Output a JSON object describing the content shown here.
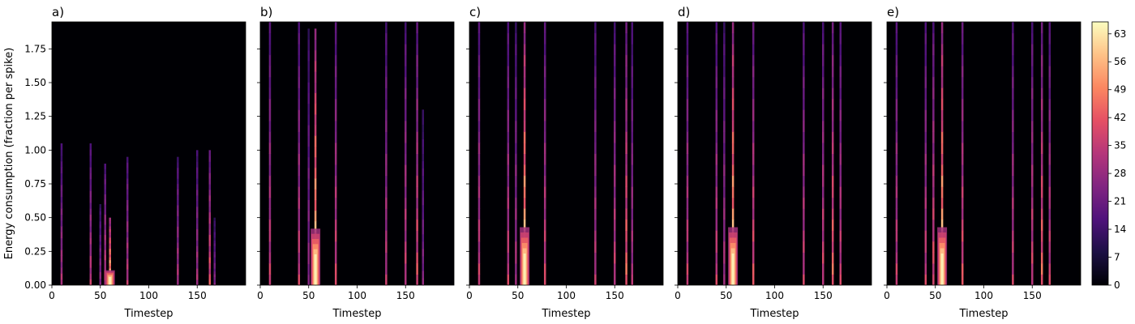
{
  "chart_data": {
    "type": "heatmap",
    "ylabel": "Energy consumption (fraction per spike)",
    "xlabel": "Timestep",
    "xlim": [
      0,
      200
    ],
    "ylim": [
      0,
      1.95
    ],
    "x_ticks": [
      0,
      50,
      100,
      150
    ],
    "x_tick_labels": [
      "0",
      "50",
      "100",
      "150"
    ],
    "y_ticks": [
      0,
      0.25,
      0.5,
      0.75,
      1.0,
      1.25,
      1.5,
      1.75
    ],
    "y_tick_labels": [
      "0.00",
      "0.25",
      "0.50",
      "0.75",
      "1.00",
      "1.25",
      "1.50",
      "1.75"
    ],
    "colormap": "magma",
    "colorbar": {
      "range": [
        0,
        66
      ],
      "ticks": [
        0,
        7,
        14,
        21,
        28,
        35,
        42,
        49,
        56,
        63
      ],
      "tick_labels": [
        "0",
        "7",
        "14",
        "21",
        "28",
        "35",
        "42",
        "49",
        "56",
        "63"
      ]
    },
    "panels": [
      {
        "title": "a)",
        "bands": [
          {
            "x": 10,
            "ymax": 1.05,
            "intensity": 35
          },
          {
            "x": 40,
            "ymax": 1.05,
            "intensity": 38
          },
          {
            "x": 50,
            "ymax": 0.6,
            "intensity": 30
          },
          {
            "x": 55,
            "ymax": 0.9,
            "intensity": 40
          },
          {
            "x": 60,
            "ymax": 0.5,
            "intensity": 66
          },
          {
            "x": 78,
            "ymax": 0.95,
            "intensity": 38
          },
          {
            "x": 130,
            "ymax": 0.95,
            "intensity": 36
          },
          {
            "x": 150,
            "ymax": 1.0,
            "intensity": 35
          },
          {
            "x": 163,
            "ymax": 1.0,
            "intensity": 45
          },
          {
            "x": 168,
            "ymax": 0.5,
            "intensity": 28
          }
        ]
      },
      {
        "title": "b)",
        "bands": [
          {
            "x": 10,
            "ymax": 1.95,
            "intensity": 40
          },
          {
            "x": 40,
            "ymax": 1.95,
            "intensity": 40
          },
          {
            "x": 50,
            "ymax": 1.9,
            "intensity": 30
          },
          {
            "x": 57,
            "ymax": 1.9,
            "intensity": 66
          },
          {
            "x": 78,
            "ymax": 1.95,
            "intensity": 42
          },
          {
            "x": 130,
            "ymax": 1.95,
            "intensity": 38
          },
          {
            "x": 150,
            "ymax": 1.95,
            "intensity": 40
          },
          {
            "x": 162,
            "ymax": 1.95,
            "intensity": 45
          },
          {
            "x": 168,
            "ymax": 1.3,
            "intensity": 28
          }
        ]
      },
      {
        "title": "c)",
        "bands": [
          {
            "x": 10,
            "ymax": 1.95,
            "intensity": 40
          },
          {
            "x": 40,
            "ymax": 1.95,
            "intensity": 40
          },
          {
            "x": 48,
            "ymax": 1.95,
            "intensity": 35
          },
          {
            "x": 57,
            "ymax": 1.95,
            "intensity": 66
          },
          {
            "x": 78,
            "ymax": 1.95,
            "intensity": 42
          },
          {
            "x": 130,
            "ymax": 1.95,
            "intensity": 38
          },
          {
            "x": 150,
            "ymax": 1.95,
            "intensity": 40
          },
          {
            "x": 162,
            "ymax": 1.95,
            "intensity": 50
          },
          {
            "x": 168,
            "ymax": 1.95,
            "intensity": 35
          }
        ]
      },
      {
        "title": "d)",
        "bands": [
          {
            "x": 10,
            "ymax": 1.95,
            "intensity": 40
          },
          {
            "x": 40,
            "ymax": 1.95,
            "intensity": 40
          },
          {
            "x": 48,
            "ymax": 1.95,
            "intensity": 35
          },
          {
            "x": 57,
            "ymax": 1.95,
            "intensity": 66
          },
          {
            "x": 78,
            "ymax": 1.95,
            "intensity": 45
          },
          {
            "x": 130,
            "ymax": 1.95,
            "intensity": 40
          },
          {
            "x": 150,
            "ymax": 1.95,
            "intensity": 42
          },
          {
            "x": 160,
            "ymax": 1.95,
            "intensity": 50
          },
          {
            "x": 168,
            "ymax": 1.95,
            "intensity": 40
          }
        ]
      },
      {
        "title": "e)",
        "bands": [
          {
            "x": 10,
            "ymax": 1.95,
            "intensity": 40
          },
          {
            "x": 40,
            "ymax": 1.95,
            "intensity": 40
          },
          {
            "x": 48,
            "ymax": 1.95,
            "intensity": 45
          },
          {
            "x": 57,
            "ymax": 1.95,
            "intensity": 66
          },
          {
            "x": 78,
            "ymax": 1.95,
            "intensity": 45
          },
          {
            "x": 130,
            "ymax": 1.95,
            "intensity": 40
          },
          {
            "x": 150,
            "ymax": 1.95,
            "intensity": 42
          },
          {
            "x": 160,
            "ymax": 1.95,
            "intensity": 50
          },
          {
            "x": 168,
            "ymax": 1.95,
            "intensity": 40
          }
        ]
      }
    ]
  }
}
